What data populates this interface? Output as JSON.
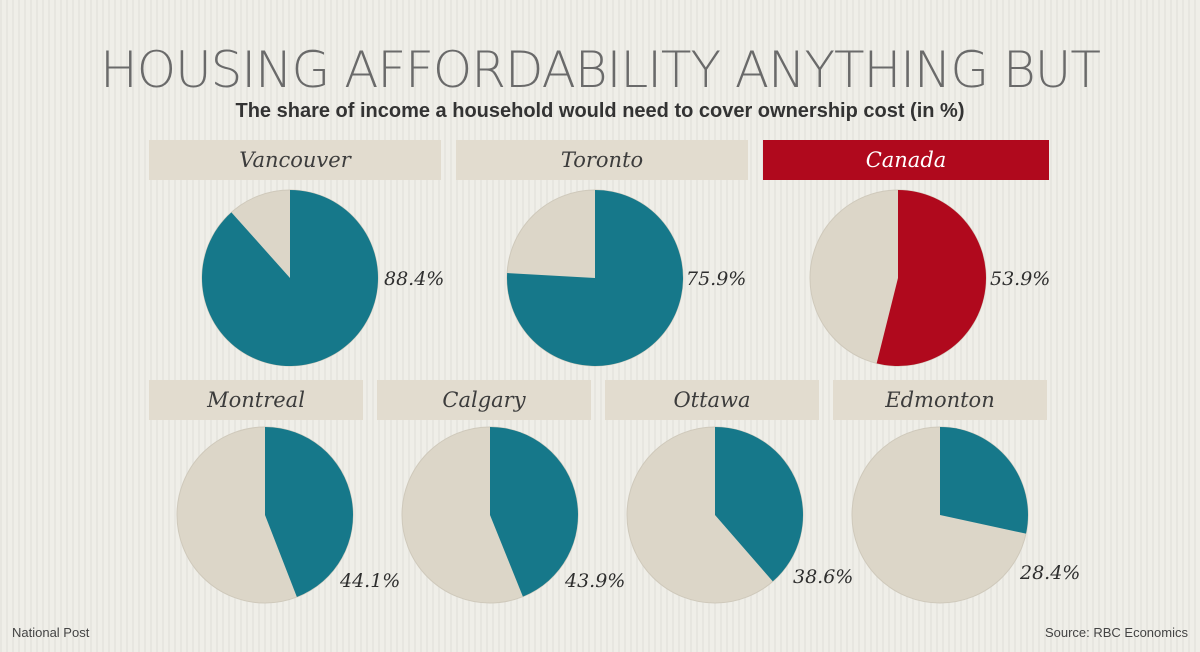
{
  "header": {
    "title": "HOUSING AFFORDABILITY ANYTHING BUT",
    "subtitle": "The share of income a household would need to cover ownership cost (in %)"
  },
  "footer": {
    "source_left": "National Post",
    "source_right": "Source: RBC Economics"
  },
  "colors": {
    "teal": "#16788a",
    "red": "#b0091d",
    "beige": "#dcd6c8",
    "label_bg": "#e2dccf"
  },
  "chart_data": {
    "type": "pie",
    "title": "HOUSING AFFORDABILITY ANYTHING BUT",
    "subtitle": "The share of income a household would need to cover ownership cost (in %)",
    "unit": "%",
    "series": [
      {
        "name": "Vancouver",
        "value": 88.4,
        "label": "88.4%",
        "highlight": false
      },
      {
        "name": "Toronto",
        "value": 75.9,
        "label": "75.9%",
        "highlight": false
      },
      {
        "name": "Canada",
        "value": 53.9,
        "label": "53.9%",
        "highlight": true
      },
      {
        "name": "Montreal",
        "value": 44.1,
        "label": "44.1%",
        "highlight": false
      },
      {
        "name": "Calgary",
        "value": 43.9,
        "label": "43.9%",
        "highlight": false
      },
      {
        "name": "Ottawa",
        "value": 38.6,
        "label": "38.6%",
        "highlight": false
      },
      {
        "name": "Edmonton",
        "value": 28.4,
        "label": "28.4%",
        "highlight": false
      }
    ]
  }
}
